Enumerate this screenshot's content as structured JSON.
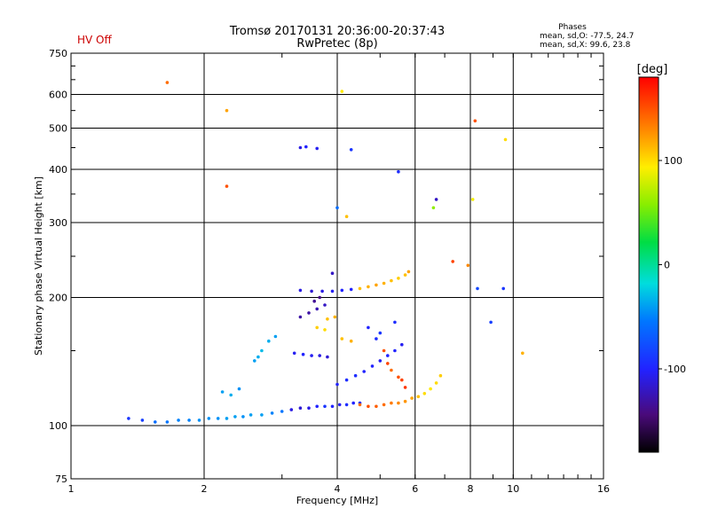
{
  "chart_data": {
    "type": "scatter",
    "title": "Tromsø 20170131 20:36:00-20:37:43",
    "subtitle": "RwPretec (8p)",
    "status_text": "HV Off",
    "xlabel": "Frequency [MHz]",
    "ylabel": "Stationary phase Virtual Height [km]",
    "x_scale": "log",
    "y_scale": "log",
    "xlim": [
      1,
      16
    ],
    "ylim": [
      75,
      750
    ],
    "x_ticks": [
      1,
      2,
      4,
      6,
      8,
      10,
      16
    ],
    "x_tick_labels": [
      "1",
      "2",
      "4",
      "6",
      "8",
      "10",
      "16"
    ],
    "x_gridlines": [
      2,
      4,
      6,
      8,
      10
    ],
    "y_ticks": [
      75,
      100,
      200,
      300,
      400,
      500,
      600,
      750
    ],
    "y_tick_labels": [
      "75",
      "100",
      "200",
      "300",
      "400",
      "500",
      "600",
      "750"
    ],
    "y_gridlines": [
      100,
      200,
      300,
      400,
      500,
      600
    ],
    "grid": true,
    "stats": {
      "heading": "Phases",
      "line_o": "mean, sd,O: -77.5, 24.7",
      "line_x": "mean, sd,X:  99.6, 23.8"
    },
    "colorbar": {
      "label": "[deg]",
      "range": [
        -180,
        180
      ],
      "ticks": [
        100,
        0,
        -100
      ],
      "tick_labels": [
        "100",
        "0",
        "-100"
      ],
      "colormap": "rainbow"
    },
    "series": [
      {
        "values": [
          [
            1.35,
            104,
            -90
          ],
          [
            1.45,
            103,
            -85
          ],
          [
            1.55,
            102,
            -60
          ],
          [
            1.65,
            102,
            -55
          ],
          [
            1.75,
            103,
            -50
          ],
          [
            1.85,
            103,
            -50
          ],
          [
            1.95,
            103,
            -45
          ],
          [
            2.05,
            104,
            -45
          ],
          [
            2.15,
            104,
            -45
          ],
          [
            2.25,
            104,
            -40
          ],
          [
            2.35,
            105,
            -40
          ],
          [
            2.45,
            105,
            -45
          ],
          [
            2.55,
            106,
            -40
          ],
          [
            2.7,
            106,
            -40
          ],
          [
            2.85,
            107,
            -50
          ],
          [
            3.0,
            108,
            -55
          ],
          [
            3.15,
            109,
            -110
          ],
          [
            3.3,
            110,
            -115
          ],
          [
            3.45,
            110,
            -110
          ],
          [
            3.6,
            111,
            -100
          ],
          [
            3.75,
            111,
            -90
          ],
          [
            3.9,
            111,
            -100
          ],
          [
            4.05,
            112,
            -105
          ],
          [
            4.2,
            112,
            -95
          ],
          [
            4.35,
            113,
            -100
          ],
          [
            4.5,
            113,
            -95
          ]
        ]
      },
      {
        "values": [
          [
            4.5,
            112,
            140
          ],
          [
            4.7,
            111,
            150
          ],
          [
            4.9,
            111,
            145
          ],
          [
            5.1,
            112,
            140
          ],
          [
            5.3,
            113,
            135
          ],
          [
            5.5,
            113,
            130
          ],
          [
            5.7,
            114,
            125
          ],
          [
            5.9,
            116,
            120
          ],
          [
            6.1,
            117,
            110
          ],
          [
            6.3,
            119,
            100
          ],
          [
            6.5,
            122,
            95
          ],
          [
            6.7,
            126,
            100
          ],
          [
            6.85,
            131,
            105
          ]
        ]
      },
      {
        "values": [
          [
            3.2,
            148,
            -105
          ],
          [
            3.35,
            147,
            -100
          ],
          [
            3.5,
            146,
            -105
          ],
          [
            3.65,
            146,
            -110
          ],
          [
            3.8,
            145,
            -115
          ],
          [
            4.0,
            125,
            -100
          ],
          [
            4.2,
            128,
            -95
          ],
          [
            4.4,
            131,
            -95
          ],
          [
            4.6,
            134,
            -100
          ],
          [
            4.8,
            138,
            -100
          ],
          [
            5.0,
            142,
            -105
          ],
          [
            5.2,
            146,
            -100
          ],
          [
            5.4,
            150,
            -100
          ],
          [
            5.6,
            155,
            -105
          ]
        ]
      },
      {
        "values": [
          [
            3.3,
            208,
            -110
          ],
          [
            3.5,
            207,
            -115
          ],
          [
            3.7,
            207,
            -110
          ],
          [
            3.9,
            207,
            -105
          ],
          [
            4.1,
            208,
            -100
          ],
          [
            4.3,
            209,
            -100
          ],
          [
            4.5,
            210,
            110
          ],
          [
            4.7,
            212,
            115
          ],
          [
            4.9,
            214,
            120
          ],
          [
            5.1,
            216,
            115
          ],
          [
            5.3,
            219,
            110
          ],
          [
            5.5,
            222,
            105
          ],
          [
            5.7,
            226,
            110
          ],
          [
            5.8,
            230,
            120
          ]
        ]
      },
      {
        "values": [
          [
            3.3,
            180,
            -130
          ],
          [
            3.45,
            184,
            -130
          ],
          [
            3.6,
            188,
            -125
          ],
          [
            3.75,
            192,
            -120
          ],
          [
            3.55,
            196,
            -135
          ],
          [
            3.65,
            200,
            -140
          ],
          [
            3.8,
            178,
            110
          ],
          [
            3.95,
            180,
            115
          ],
          [
            3.6,
            170,
            105
          ],
          [
            3.75,
            168,
            100
          ],
          [
            4.1,
            160,
            110
          ],
          [
            4.3,
            158,
            115
          ]
        ]
      },
      {
        "values": [
          [
            5.1,
            150,
            150
          ],
          [
            5.2,
            140,
            155
          ],
          [
            5.3,
            135,
            140
          ],
          [
            5.5,
            130,
            150
          ],
          [
            5.6,
            128,
            155
          ],
          [
            5.7,
            123,
            160
          ],
          [
            4.9,
            160,
            -95
          ],
          [
            5.0,
            165,
            -90
          ],
          [
            4.7,
            170,
            -100
          ],
          [
            5.4,
            175,
            -95
          ]
        ]
      },
      {
        "values": [
          [
            2.6,
            142,
            -40
          ],
          [
            2.7,
            150,
            -30
          ],
          [
            2.8,
            158,
            -35
          ],
          [
            2.9,
            162,
            -40
          ],
          [
            2.65,
            145,
            -35
          ],
          [
            2.2,
            120,
            -40
          ],
          [
            2.3,
            118,
            -35
          ],
          [
            2.4,
            122,
            -45
          ]
        ]
      },
      {
        "values": [
          [
            3.3,
            450,
            -110
          ],
          [
            3.4,
            452,
            -100
          ],
          [
            3.6,
            448,
            -105
          ],
          [
            4.3,
            445,
            -90
          ],
          [
            4.0,
            325,
            -60
          ],
          [
            4.2,
            310,
            110
          ],
          [
            3.9,
            228,
            -120
          ],
          [
            5.5,
            395,
            -95
          ],
          [
            6.7,
            340,
            -120
          ],
          [
            6.6,
            325,
            60
          ],
          [
            7.3,
            243,
            155
          ],
          [
            7.9,
            238,
            130
          ]
        ]
      },
      {
        "values": [
          [
            8.3,
            210,
            -80
          ],
          [
            9.5,
            210,
            -90
          ],
          [
            8.9,
            175,
            -85
          ],
          [
            10.5,
            148,
            115
          ],
          [
            9.6,
            470,
            100
          ],
          [
            8.2,
            520,
            150
          ],
          [
            8.1,
            340,
            90
          ],
          [
            1.65,
            640,
            140
          ],
          [
            2.25,
            550,
            120
          ],
          [
            2.25,
            365,
            150
          ],
          [
            4.1,
            610,
            95
          ]
        ]
      }
    ]
  }
}
